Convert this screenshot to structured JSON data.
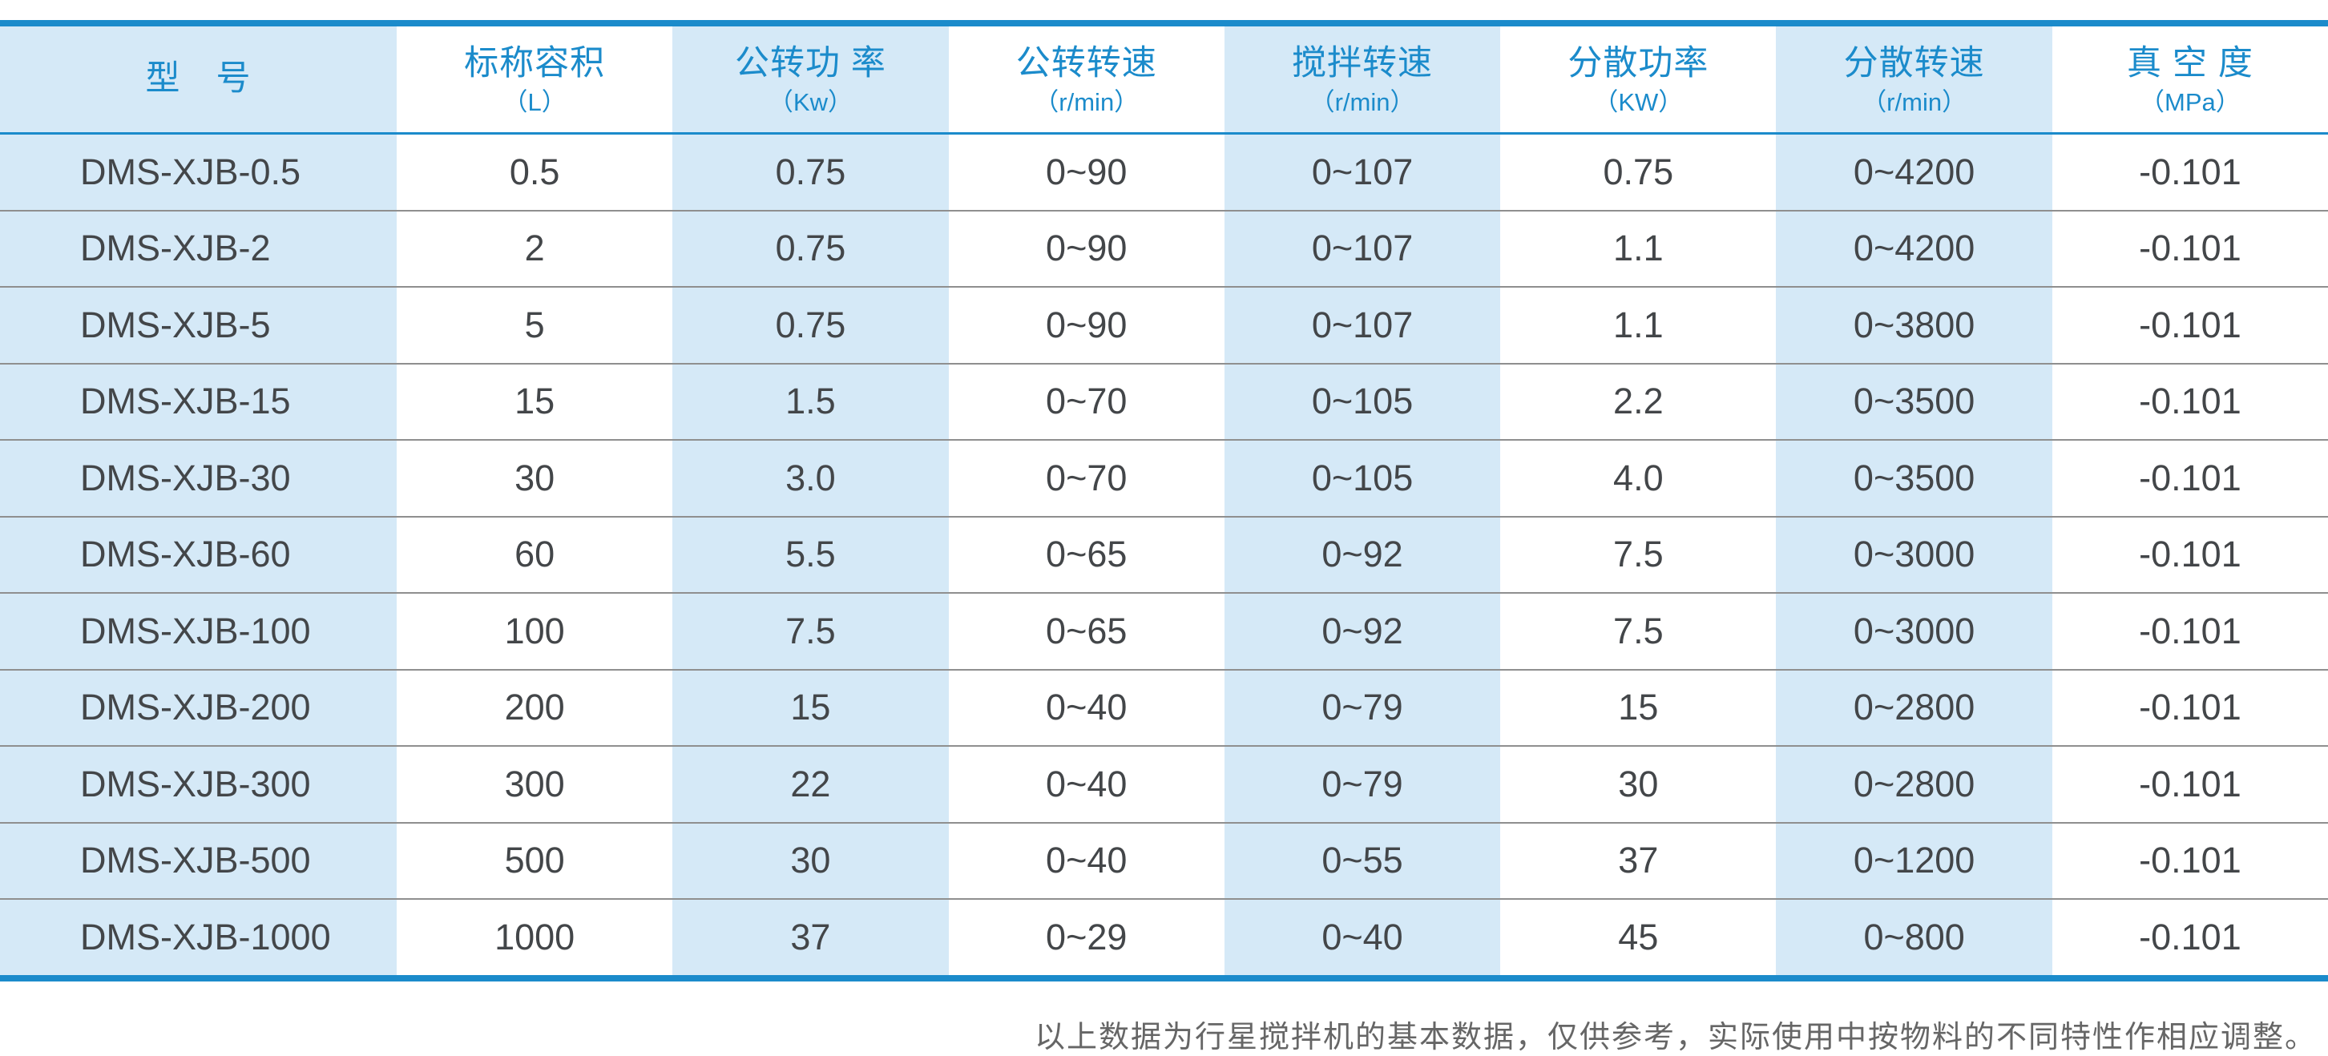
{
  "colors": {
    "accent": "#1b8bcb",
    "light_cell": "#d5e9f7",
    "body_text": "#434649",
    "divider": "#8f8f8f",
    "note_text": "#666666"
  },
  "table": {
    "columns": [
      {
        "title": "型　号",
        "unit": ""
      },
      {
        "title": "标称容积",
        "unit": "（L）"
      },
      {
        "title": "公转功 率",
        "unit": "（Kw）"
      },
      {
        "title": "公转转速",
        "unit": "（r/min）"
      },
      {
        "title": "搅拌转速",
        "unit": "（r/min）"
      },
      {
        "title": "分散功率",
        "unit": "（KW）"
      },
      {
        "title": "分散转速",
        "unit": "（r/min）"
      },
      {
        "title": "真 空 度",
        "unit": "（MPa）"
      }
    ],
    "rows": [
      [
        "DMS-XJB-0.5",
        "0.5",
        "0.75",
        "0~90",
        "0~107",
        "0.75",
        "0~4200",
        "-0.101"
      ],
      [
        "DMS-XJB-2",
        "2",
        "0.75",
        "0~90",
        "0~107",
        "1.1",
        "0~4200",
        "-0.101"
      ],
      [
        "DMS-XJB-5",
        "5",
        "0.75",
        "0~90",
        "0~107",
        "1.1",
        "0~3800",
        "-0.101"
      ],
      [
        "DMS-XJB-15",
        "15",
        "1.5",
        "0~70",
        "0~105",
        "2.2",
        "0~3500",
        "-0.101"
      ],
      [
        "DMS-XJB-30",
        "30",
        "3.0",
        "0~70",
        "0~105",
        "4.0",
        "0~3500",
        "-0.101"
      ],
      [
        "DMS-XJB-60",
        "60",
        "5.5",
        "0~65",
        "0~92",
        "7.5",
        "0~3000",
        "-0.101"
      ],
      [
        "DMS-XJB-100",
        "100",
        "7.5",
        "0~65",
        "0~92",
        "7.5",
        "0~3000",
        "-0.101"
      ],
      [
        "DMS-XJB-200",
        "200",
        "15",
        "0~40",
        "0~79",
        "15",
        "0~2800",
        "-0.101"
      ],
      [
        "DMS-XJB-300",
        "300",
        "22",
        "0~40",
        "0~79",
        "30",
        "0~2800",
        "-0.101"
      ],
      [
        "DMS-XJB-500",
        "500",
        "30",
        "0~40",
        "0~55",
        "37",
        "0~1200",
        "-0.101"
      ],
      [
        "DMS-XJB-1000",
        "1000",
        "37",
        "0~29",
        "0~40",
        "45",
        "0~800",
        "-0.101"
      ]
    ]
  },
  "footnote": "以上数据为行星搅拌机的基本数据，仅供参考，实际使用中按物料的不同特性作相应调整。"
}
